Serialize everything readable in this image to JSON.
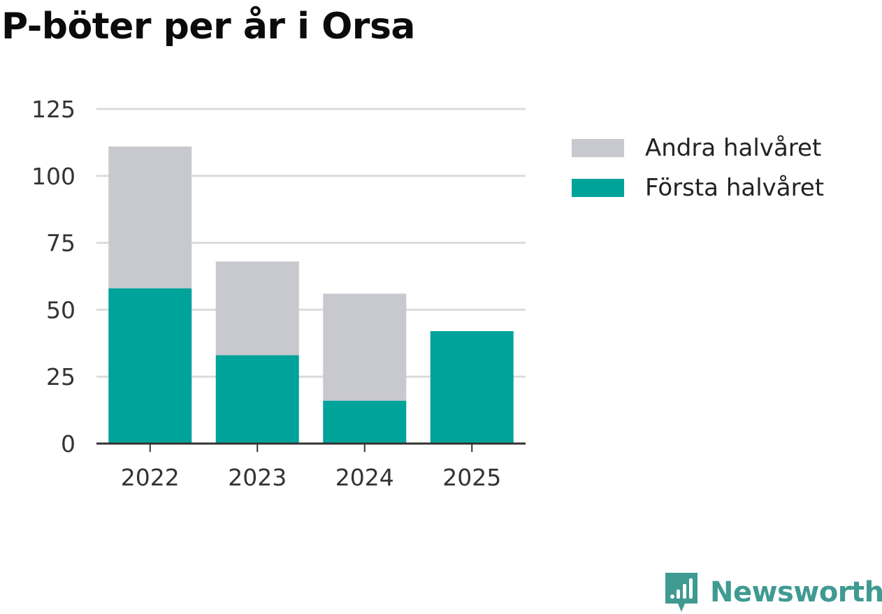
{
  "colors": {
    "first_half": "#00a39a",
    "second_half": "#c8c8cf",
    "grid": "#dcdcdc",
    "axis": "#333333",
    "brand": "#3f9a92"
  },
  "chart_data": {
    "type": "bar",
    "stacked": true,
    "title": "P-böter per år i Orsa",
    "xlabel": "",
    "ylabel": "",
    "categories": [
      "2022",
      "2023",
      "2024",
      "2025"
    ],
    "series": [
      {
        "name": "Första halvåret",
        "color": "#00a39a",
        "values": [
          58,
          33,
          16,
          42
        ]
      },
      {
        "name": "Andra halvåret",
        "color": "#c8c8cf",
        "values": [
          53,
          35,
          40,
          0
        ]
      }
    ],
    "ylim": [
      0,
      125
    ],
    "yticks": [
      "0",
      "25",
      "50",
      "75",
      "100",
      "125"
    ],
    "grid": true,
    "legend": {
      "position": "right",
      "items": [
        "Andra halvåret",
        "Första halvåret"
      ]
    }
  },
  "branding": {
    "logo_text": "Newsworthy",
    "logo_icon": "newsworthy-chart-icon"
  }
}
